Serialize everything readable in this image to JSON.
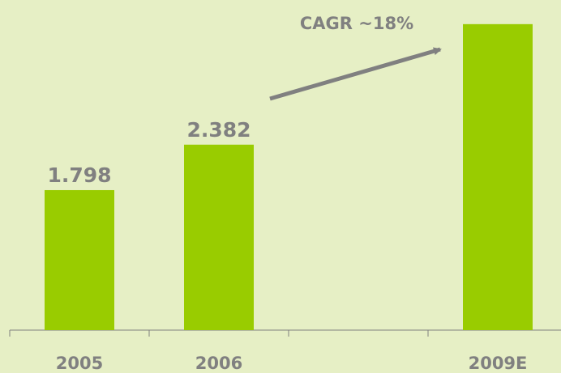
{
  "chart_data": {
    "type": "bar",
    "categories": [
      "2005",
      "2006",
      null,
      "2009E"
    ],
    "values": [
      1.798,
      2.382,
      null,
      3.93
    ],
    "value_labels": [
      "1.798",
      "2.382",
      null,
      null
    ],
    "color": "#99cc00",
    "ylim": [
      0,
      4.24
    ],
    "annotation": "CAGR ~18%"
  }
}
